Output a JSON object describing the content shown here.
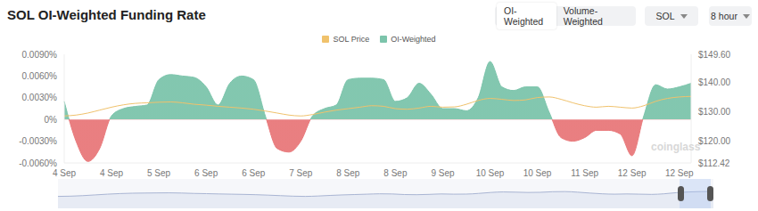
{
  "chart_data": {
    "type": "area",
    "title": "SOL OI-Weighted Funding Rate",
    "controls": [
      "OI-Weighted",
      "Volume-Weighted",
      "SOL",
      "8 hour"
    ],
    "watermark": "coinglass",
    "legend": "top",
    "grid": false,
    "categories": [
      "4 Sep",
      null,
      null,
      null,
      "4 Sep",
      null,
      null,
      null,
      "5 Sep",
      null,
      null,
      null,
      "6 Sep",
      null,
      null,
      null,
      "6 Sep",
      null,
      null,
      null,
      "7 Sep",
      null,
      null,
      null,
      "8 Sep",
      null,
      null,
      null,
      "8 Sep",
      null,
      null,
      null,
      "9 Sep",
      null,
      null,
      null,
      "10 Sep",
      null,
      null,
      null,
      "10 Sep",
      null,
      null,
      null,
      "11 Sep",
      null,
      null,
      null,
      "12 Sep",
      null,
      null,
      null,
      "12 Sep",
      null
    ],
    "series": [
      {
        "name": "SOL Price",
        "type": "line",
        "axis": "y2",
        "color": "#f0c26c",
        "values": [
          128.5,
          128.8,
          129.5,
          130.5,
          131.5,
          132.3,
          132.8,
          133.0,
          133.2,
          133.3,
          133.0,
          132.5,
          132.2,
          131.8,
          131.5,
          131.2,
          130.8,
          130.2,
          129.5,
          128.8,
          128.5,
          129.0,
          129.8,
          130.5,
          131.0,
          131.5,
          132.0,
          131.8,
          131.0,
          130.8,
          131.2,
          131.8,
          131.5,
          131.6,
          132.5,
          133.8,
          134.5,
          134.2,
          133.8,
          134.0,
          134.8,
          135.0,
          134.2,
          133.0,
          132.0,
          131.5,
          131.8,
          131.5,
          131.2,
          132.0,
          133.5,
          134.5,
          135.0,
          135.2
        ]
      },
      {
        "name": "OI-Weighted",
        "type": "area",
        "colors": [
          "#7cc4ab",
          "#e8787a"
        ],
        "values": [
          0.0025,
          -0.003,
          -0.0058,
          -0.004,
          0.0005,
          0.0015,
          0.0018,
          0.002,
          0.0055,
          0.0062,
          0.006,
          0.0058,
          0.0045,
          0.002,
          0.005,
          0.006,
          0.0055,
          0.0005,
          -0.004,
          -0.0045,
          -0.003,
          0.0005,
          0.0015,
          0.002,
          0.0055,
          0.0057,
          0.0057,
          0.0055,
          0.0025,
          0.003,
          0.005,
          0.0035,
          0.0015,
          0.0015,
          0.0012,
          0.003,
          0.008,
          0.0045,
          0.004,
          0.0045,
          0.0045,
          0.001,
          -0.0025,
          -0.003,
          -0.0025,
          -0.0015,
          -0.0015,
          -0.002,
          -0.005,
          0.0005,
          0.0048,
          0.0042,
          0.0045,
          0.005
        ]
      }
    ],
    "ylim": [
      -0.006,
      0.009
    ],
    "yticks": [
      {
        "value": -0.006,
        "label": "-0.0060%"
      },
      {
        "value": -0.003,
        "label": "-0.0030%"
      },
      {
        "value": 0,
        "label": "0%"
      },
      {
        "value": 0.003,
        "label": "0.0030%"
      },
      {
        "value": 0.006,
        "label": "0.0060%"
      },
      {
        "value": 0.009,
        "label": "0.0090%"
      }
    ],
    "y2lim": [
      112.42,
      149.6
    ],
    "y2ticks": [
      {
        "value": 112.42,
        "label": "$112.42"
      },
      {
        "value": 120,
        "label": "$120.00"
      },
      {
        "value": 130,
        "label": "$130.00"
      },
      {
        "value": 140,
        "label": "$140.00"
      },
      {
        "value": 149.6,
        "label": "$149.60"
      }
    ]
  }
}
